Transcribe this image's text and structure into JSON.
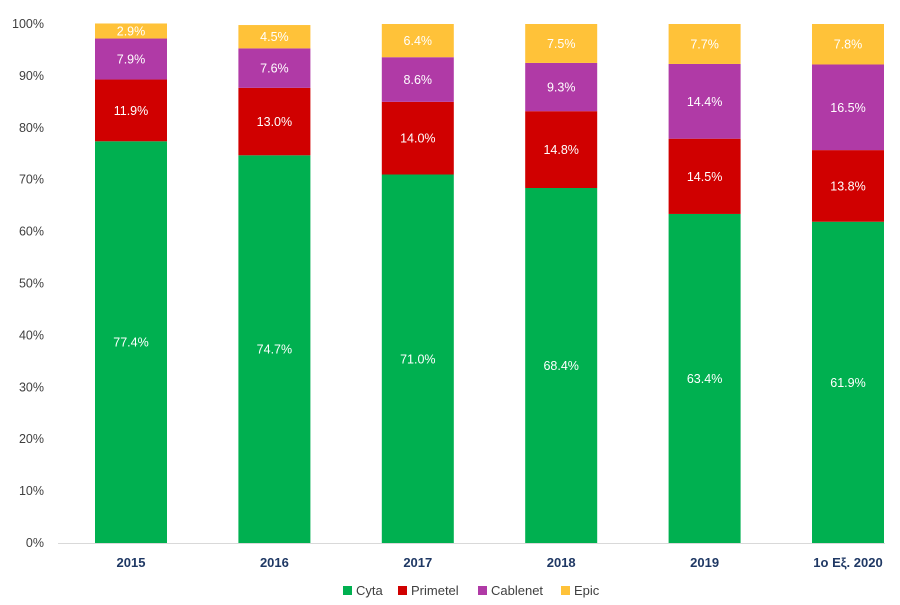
{
  "chart_data": {
    "type": "bar",
    "stacked": true,
    "title": "",
    "xlabel": "",
    "ylabel": "",
    "ylim": [
      0,
      100
    ],
    "y_ticks": [
      "0%",
      "10%",
      "20%",
      "30%",
      "40%",
      "50%",
      "60%",
      "70%",
      "80%",
      "90%",
      "100%"
    ],
    "y_tick_values": [
      0,
      10,
      20,
      30,
      40,
      50,
      60,
      70,
      80,
      90,
      100
    ],
    "categories": [
      "2015",
      "2016",
      "2017",
      "2018",
      "2019",
      "1ο Εξ. 2020"
    ],
    "series": [
      {
        "name": "Cyta",
        "color": "#00b050",
        "values": [
          77.4,
          74.7,
          71.0,
          68.4,
          63.4,
          61.9
        ],
        "labels": [
          "77.4%",
          "74.7%",
          "71.0%",
          "68.4%",
          "63.4%",
          "61.9%"
        ]
      },
      {
        "name": "Primetel",
        "color": "#d00000",
        "values": [
          11.9,
          13.0,
          14.0,
          14.8,
          14.5,
          13.8
        ],
        "labels": [
          "11.9%",
          "13.0%",
          "14.0%",
          "14.8%",
          "14.5%",
          "13.8%"
        ]
      },
      {
        "name": "Cablenet",
        "color": "#b03aa6",
        "values": [
          7.9,
          7.6,
          8.6,
          9.3,
          14.4,
          16.5
        ],
        "labels": [
          "7.9%",
          "7.6%",
          "8.6%",
          "9.3%",
          "14.4%",
          "16.5%"
        ]
      },
      {
        "name": "Epic",
        "color": "#ffc239",
        "values": [
          2.9,
          4.5,
          6.4,
          7.5,
          7.7,
          7.8
        ],
        "labels": [
          "2.9%",
          "4.5%",
          "6.4%",
          "7.5%",
          "7.7%",
          "7.8%"
        ]
      }
    ],
    "legend": "bottom-center",
    "gridlines": false
  }
}
